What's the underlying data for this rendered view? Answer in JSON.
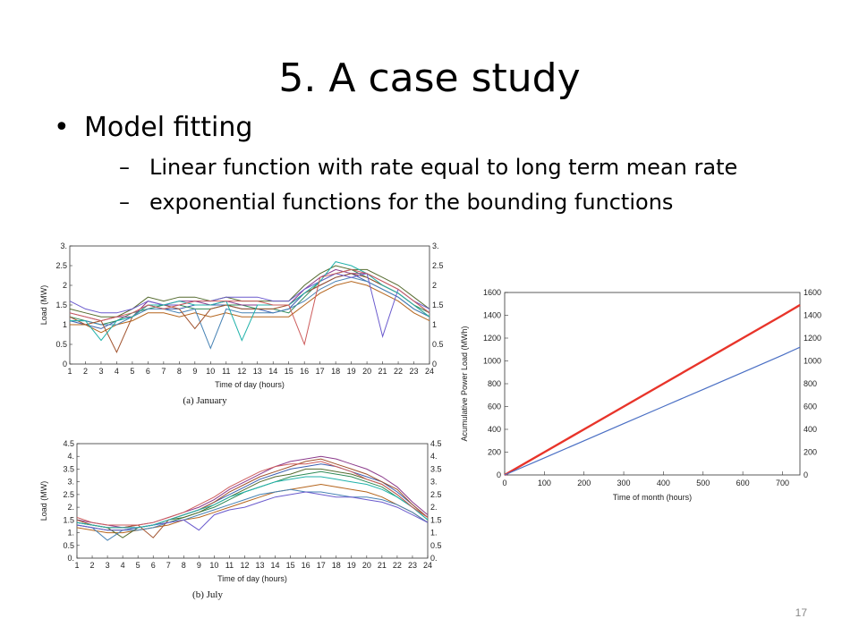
{
  "slide": {
    "title": "5. A case study",
    "bullet": "Model fitting",
    "sub_bullets": [
      "Linear function with rate equal to long term mean rate",
      "exponential functions for the bounding functions"
    ],
    "page_number": "17"
  },
  "chart_data": [
    {
      "type": "line",
      "caption": "(a) January",
      "xlabel": "Time of day (hours)",
      "ylabel": "Load (MW)",
      "x": [
        1,
        2,
        3,
        4,
        5,
        6,
        7,
        8,
        9,
        10,
        11,
        12,
        13,
        14,
        15,
        16,
        17,
        18,
        19,
        20,
        21,
        22,
        23,
        24
      ],
      "x_ticks": [
        "1",
        "2",
        "3",
        "4",
        "5",
        "6",
        "7",
        "8",
        "9",
        "10",
        "11",
        "12",
        "13",
        "14",
        "15",
        "16",
        "17",
        "18",
        "19",
        "20",
        "21",
        "22",
        "23",
        "24"
      ],
      "ylim": [
        0,
        3
      ],
      "y_ticks": [
        "0",
        "0.5",
        "1",
        "1.5",
        "2",
        "2.5",
        "3."
      ],
      "series": [
        {
          "values": [
            1.1,
            1.0,
            0.9,
            1.1,
            1.2,
            1.5,
            1.4,
            1.4,
            1.5,
            1.5,
            1.5,
            1.4,
            1.4,
            1.3,
            1.4,
            1.8,
            2.0,
            2.2,
            2.3,
            2.1,
            1.9,
            1.7,
            1.4,
            1.2
          ]
        },
        {
          "values": [
            1.2,
            1.1,
            1.0,
            1.1,
            1.3,
            1.4,
            1.5,
            1.5,
            1.4,
            1.4,
            1.5,
            1.5,
            1.4,
            1.4,
            1.3,
            1.7,
            2.1,
            2.3,
            2.4,
            2.2,
            2.0,
            1.8,
            1.5,
            1.3
          ]
        },
        {
          "values": [
            1.3,
            1.2,
            1.1,
            1.2,
            1.2,
            1.6,
            1.5,
            1.6,
            1.6,
            1.5,
            1.6,
            1.5,
            1.5,
            1.5,
            1.5,
            1.9,
            2.2,
            2.4,
            2.3,
            2.3,
            2.1,
            1.9,
            1.6,
            1.3
          ]
        },
        {
          "values": [
            1.0,
            1.0,
            0.8,
            1.0,
            1.1,
            1.3,
            1.3,
            1.2,
            1.3,
            1.2,
            1.3,
            1.2,
            1.2,
            1.2,
            1.2,
            1.5,
            1.8,
            2.0,
            2.1,
            2.0,
            1.8,
            1.6,
            1.3,
            1.1
          ]
        },
        {
          "values": [
            1.4,
            1.3,
            1.2,
            1.2,
            1.4,
            1.7,
            1.6,
            1.7,
            1.7,
            1.6,
            1.7,
            1.6,
            1.6,
            1.6,
            1.6,
            2.0,
            2.3,
            2.5,
            2.4,
            2.4,
            2.2,
            2.0,
            1.7,
            1.4
          ]
        },
        {
          "values": [
            1.1,
            1.1,
            1.0,
            1.0,
            1.2,
            1.4,
            1.4,
            1.3,
            1.4,
            0.4,
            1.4,
            1.3,
            1.3,
            1.3,
            1.4,
            1.6,
            1.9,
            2.1,
            2.2,
            2.1,
            1.9,
            1.7,
            1.4,
            1.2
          ]
        },
        {
          "values": [
            1.2,
            1.0,
            1.1,
            0.3,
            1.2,
            1.5,
            1.5,
            1.4,
            0.9,
            1.4,
            1.5,
            1.4,
            1.4,
            1.4,
            1.5,
            1.8,
            2.0,
            2.2,
            2.3,
            2.2,
            2.0,
            1.8,
            1.5,
            1.2
          ]
        },
        {
          "values": [
            1.6,
            1.4,
            1.3,
            1.3,
            1.4,
            1.6,
            1.5,
            1.5,
            1.6,
            1.6,
            1.7,
            1.7,
            1.7,
            1.6,
            1.6,
            1.9,
            2.1,
            2.3,
            2.2,
            2.3,
            0.7,
            1.9,
            1.6,
            1.4
          ]
        },
        {
          "values": [
            1.1,
            1.1,
            0.6,
            1.1,
            1.2,
            1.5,
            1.5,
            1.6,
            1.5,
            1.5,
            1.6,
            0.6,
            1.5,
            1.5,
            1.5,
            1.8,
            2.1,
            2.6,
            2.5,
            2.3,
            2.0,
            1.8,
            1.5,
            1.2
          ]
        },
        {
          "values": [
            1.3,
            1.2,
            1.1,
            1.2,
            1.3,
            1.5,
            1.4,
            1.5,
            1.6,
            1.6,
            1.6,
            1.6,
            1.6,
            1.5,
            1.5,
            0.5,
            2.2,
            2.3,
            2.4,
            2.3,
            2.1,
            1.9,
            1.6,
            1.3
          ]
        }
      ]
    },
    {
      "type": "line",
      "caption": "(b) July",
      "xlabel": "Time of day (hours)",
      "ylabel": "Load (MW)",
      "x": [
        1,
        2,
        3,
        4,
        5,
        6,
        7,
        8,
        9,
        10,
        11,
        12,
        13,
        14,
        15,
        16,
        17,
        18,
        19,
        20,
        21,
        22,
        23,
        24
      ],
      "x_ticks": [
        "1",
        "2",
        "3",
        "4",
        "5",
        "6",
        "7",
        "8",
        "9",
        "10",
        "11",
        "12",
        "13",
        "14",
        "15",
        "16",
        "17",
        "18",
        "19",
        "20",
        "21",
        "22",
        "23",
        "24"
      ],
      "ylim": [
        0,
        4.5
      ],
      "y_ticks": [
        "0.",
        "0.5",
        "1.",
        "1.5",
        "2.",
        "2.5",
        "3.",
        "3.5",
        "4.",
        "4.5"
      ],
      "series": [
        {
          "values": [
            1.4,
            1.3,
            1.2,
            1.2,
            1.2,
            1.3,
            1.5,
            1.7,
            1.9,
            2.2,
            2.5,
            2.8,
            3.1,
            3.3,
            3.5,
            3.6,
            3.7,
            3.6,
            3.4,
            3.2,
            3.0,
            2.6,
            2.1,
            1.6
          ]
        },
        {
          "values": [
            1.3,
            1.2,
            1.1,
            1.1,
            1.2,
            1.3,
            1.4,
            1.6,
            1.8,
            2.0,
            2.3,
            2.6,
            2.8,
            3.0,
            3.2,
            3.3,
            3.4,
            3.3,
            3.2,
            3.0,
            2.8,
            2.4,
            2.0,
            1.5
          ]
        },
        {
          "values": [
            1.5,
            1.4,
            1.3,
            1.2,
            1.3,
            1.4,
            1.6,
            1.8,
            2.0,
            2.3,
            2.7,
            3.0,
            3.3,
            3.6,
            3.8,
            3.9,
            4.0,
            3.9,
            3.7,
            3.5,
            3.2,
            2.8,
            2.2,
            1.7
          ]
        },
        {
          "values": [
            1.2,
            1.1,
            1.0,
            1.0,
            1.1,
            1.2,
            1.3,
            1.5,
            1.6,
            1.8,
            2.0,
            2.2,
            2.4,
            2.6,
            2.7,
            2.8,
            2.9,
            2.8,
            2.7,
            2.6,
            2.4,
            2.1,
            1.8,
            1.4
          ]
        },
        {
          "values": [
            1.4,
            1.3,
            1.2,
            0.8,
            1.2,
            1.3,
            1.5,
            1.6,
            1.8,
            2.1,
            2.4,
            2.7,
            3.0,
            3.2,
            3.3,
            3.5,
            3.5,
            3.4,
            3.3,
            3.1,
            2.9,
            2.5,
            2.0,
            1.6
          ]
        },
        {
          "values": [
            1.3,
            1.2,
            0.7,
            1.1,
            1.1,
            1.2,
            1.4,
            1.5,
            1.7,
            1.9,
            2.1,
            2.3,
            2.5,
            2.6,
            2.7,
            2.6,
            2.6,
            2.5,
            2.4,
            2.4,
            2.3,
            2.1,
            1.8,
            1.4
          ]
        },
        {
          "values": [
            1.5,
            1.3,
            1.2,
            1.2,
            1.3,
            0.8,
            1.5,
            1.7,
            1.9,
            2.2,
            2.6,
            2.9,
            3.2,
            3.4,
            3.6,
            3.8,
            3.9,
            3.7,
            3.5,
            3.3,
            3.0,
            2.7,
            2.1,
            1.6
          ]
        },
        {
          "values": [
            1.3,
            1.2,
            1.1,
            1.1,
            1.2,
            1.3,
            1.4,
            1.5,
            1.1,
            1.7,
            1.9,
            2.0,
            2.2,
            2.4,
            2.5,
            2.6,
            2.5,
            2.4,
            2.4,
            2.3,
            2.2,
            2.0,
            1.7,
            1.4
          ]
        },
        {
          "values": [
            1.4,
            1.3,
            1.2,
            1.2,
            1.2,
            1.3,
            1.5,
            1.7,
            1.9,
            2.1,
            2.4,
            2.6,
            2.8,
            3.0,
            3.1,
            3.2,
            3.2,
            3.1,
            3.0,
            2.9,
            2.7,
            2.4,
            2.0,
            1.5
          ]
        },
        {
          "values": [
            1.6,
            1.4,
            1.3,
            1.3,
            1.3,
            1.4,
            1.6,
            1.8,
            2.1,
            2.4,
            2.8,
            3.1,
            3.4,
            3.6,
            3.7,
            3.7,
            3.8,
            3.6,
            3.4,
            3.1,
            2.9,
            2.5,
            2.0,
            1.6
          ]
        }
      ]
    },
    {
      "type": "line",
      "xlabel": "Time of month (hours)",
      "ylabel": "Acumulative Power Load (MWh)",
      "xlim": [
        0,
        744
      ],
      "ylim": [
        0,
        1600
      ],
      "x_ticks": [
        "0",
        "100",
        "200",
        "300",
        "400",
        "500",
        "600",
        "700"
      ],
      "y_ticks": [
        "0",
        "200",
        "400",
        "600",
        "800",
        "1000",
        "1200",
        "1400",
        "1600"
      ],
      "series": [
        {
          "color": "#e8342a",
          "x": [
            0,
            100,
            200,
            300,
            400,
            500,
            600,
            700,
            744
          ],
          "values": [
            0,
            200,
            400,
            600,
            800,
            1000,
            1200,
            1400,
            1490
          ]
        },
        {
          "color": "#4a6fc4",
          "x": [
            0,
            100,
            200,
            300,
            400,
            500,
            600,
            700,
            744
          ],
          "values": [
            0,
            150,
            300,
            450,
            600,
            750,
            900,
            1050,
            1120
          ]
        }
      ]
    }
  ]
}
